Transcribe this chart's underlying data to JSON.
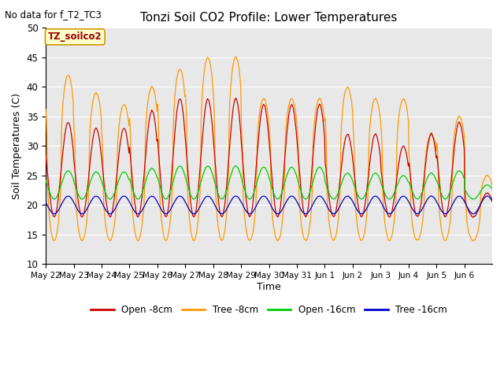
{
  "title": "Tonzi Soil CO2 Profile: Lower Temperatures",
  "subtitle": "No data for f_T2_TC3",
  "ylabel": "Soil Temperatures (C)",
  "xlabel": "Time",
  "annotation": "TZ_soilco2",
  "ylim": [
    10,
    50
  ],
  "plot_bg": "#e8e8e8",
  "x_tick_labels": [
    "May 22",
    "May 23",
    "May 24",
    "May 25",
    "May 26",
    "May 27",
    "May 28",
    "May 29",
    "May 30",
    "May 31",
    "Jun 1",
    "Jun 2",
    "Jun 3",
    "Jun 4",
    "Jun 5",
    "Jun 6"
  ],
  "ytick_labels": [
    "10",
    "15",
    "20",
    "25",
    "30",
    "35",
    "40",
    "45",
    "50"
  ],
  "colors": {
    "open_8cm": "#cc0000",
    "tree_8cm": "#ff9900",
    "open_16cm": "#00cc00",
    "tree_16cm": "#0000cc"
  },
  "legend_labels": [
    "Open -8cm",
    "Tree -8cm",
    "Open -16cm",
    "Tree -16cm"
  ]
}
